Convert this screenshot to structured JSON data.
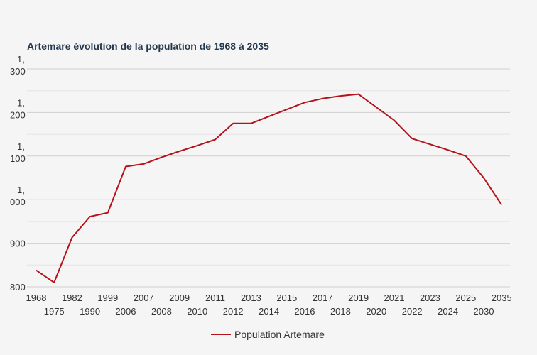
{
  "chart_data": {
    "type": "line",
    "title": "Artemare évolution de la population  de 1968 à 2035",
    "xlabel": "",
    "ylabel": "",
    "x": [
      "1968",
      "1975",
      "1982",
      "1990",
      "1999",
      "2006",
      "2007",
      "2008",
      "2009",
      "2010",
      "2011",
      "2012",
      "2013",
      "2014",
      "2015",
      "2016",
      "2017",
      "2018",
      "2019",
      "2020",
      "2021",
      "2022",
      "2023",
      "2024",
      "2025",
      "2030",
      "2035"
    ],
    "series": [
      {
        "name": "Population Artemare",
        "color": "#b5121b",
        "values": [
          838,
          810,
          913,
          961,
          970,
          1076,
          1082,
          1097,
          1111,
          1124,
          1138,
          1175,
          1175,
          1191,
          1207,
          1223,
          1232,
          1238,
          1242,
          1212,
          1182,
          1140,
          1127,
          1114,
          1100,
          1050,
          988
        ]
      }
    ],
    "y_ticks": [
      {
        "value": 800,
        "lines": [
          "800"
        ]
      },
      {
        "value": 900,
        "lines": [
          "900"
        ]
      },
      {
        "value": 1000,
        "lines": [
          "1,",
          "000"
        ]
      },
      {
        "value": 1100,
        "lines": [
          "1,",
          "100"
        ]
      },
      {
        "value": 1200,
        "lines": [
          "1,",
          "200"
        ]
      },
      {
        "value": 1300,
        "lines": [
          "1,",
          "300"
        ]
      }
    ],
    "ylim": [
      800,
      1300
    ],
    "grid": true,
    "legend_position": "bottom-center"
  }
}
